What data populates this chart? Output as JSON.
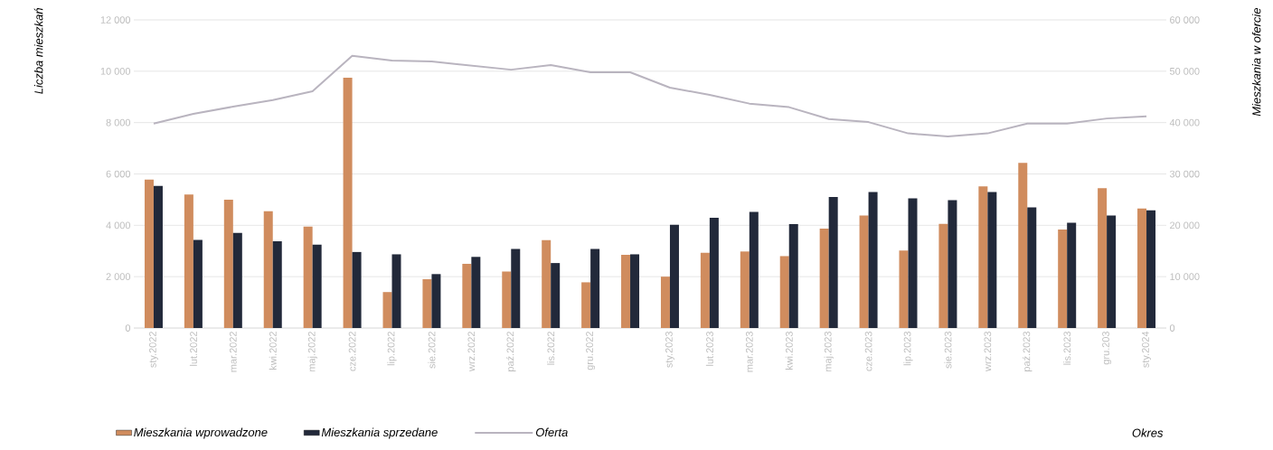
{
  "chart_data": {
    "type": "bar",
    "xlabel": "Okres",
    "ylabel": "Liczba mieszkań",
    "y2label": "Mieszkania w ofercie",
    "categories": [
      "sty.2022",
      "lut.2022",
      "mar.2022",
      "kwi.2022",
      "maj.2022",
      "cze.2022",
      "lip.2022",
      "sie.2022",
      "wrz.2022",
      "paź.2022",
      "lis.2022",
      "gru.2022",
      null,
      "sty.2023",
      "lut.2023",
      "mar.2023",
      "kwi.2023",
      "maj.2023",
      "cze.2023",
      "lip.2023",
      "sie.2023",
      "wrz.2023",
      "paź.2023",
      "lis.2023",
      "gru.203",
      "sty.2024"
    ],
    "series": [
      {
        "name": "Mieszkania wprowadzone",
        "color": "#d08c5e",
        "values": [
          5780,
          5200,
          5000,
          4550,
          3950,
          9750,
          1400,
          1900,
          2500,
          2200,
          3420,
          1780,
          2850,
          2000,
          2930,
          2980,
          2800,
          3870,
          4380,
          3020,
          4060,
          5520,
          6430,
          3840,
          5450,
          4650
        ]
      },
      {
        "name": "Mieszkania sprzedane",
        "color": "#22293a",
        "values": [
          5530,
          3430,
          3700,
          3380,
          3250,
          2960,
          2870,
          2100,
          2770,
          3080,
          2530,
          3080,
          2870,
          4020,
          4290,
          4520,
          4050,
          5100,
          5300,
          5050,
          4980,
          5300,
          4700,
          4100,
          4380,
          4580
        ]
      },
      {
        "name": "Oferta",
        "type": "line",
        "axis": "y2",
        "color": "#b9b4bf",
        "values": [
          39800,
          41700,
          43100,
          44400,
          46100,
          53000,
          52100,
          51900,
          51100,
          50300,
          51200,
          49800,
          49800,
          46800,
          45400,
          43700,
          43000,
          40700,
          40100,
          37900,
          37300,
          37900,
          39800,
          39800,
          40800,
          41200
        ]
      }
    ],
    "ylim": [
      0,
      12000
    ],
    "yticks": [
      0,
      {
        "value": 2000,
        "label": "2 000"
      },
      {
        "value": 4000,
        "label": "4 000"
      },
      {
        "value": 6000,
        "label": "6 000"
      },
      {
        "value": 8000,
        "label": "8 000"
      },
      {
        "value": 10000,
        "label": "10 000"
      },
      {
        "value": 12000,
        "label": "12 000"
      }
    ],
    "y2lim": [
      0,
      60000
    ],
    "y2ticks": [
      0,
      {
        "value": 10000,
        "label": "10 000"
      },
      {
        "value": 20000,
        "label": "20 000"
      },
      {
        "value": 30000,
        "label": "30 000"
      },
      {
        "value": 40000,
        "label": "40 000"
      },
      {
        "value": 50000,
        "label": "50 000"
      },
      {
        "value": 60000,
        "label": "60 000"
      }
    ],
    "grid": "y",
    "legend": "bottom"
  }
}
